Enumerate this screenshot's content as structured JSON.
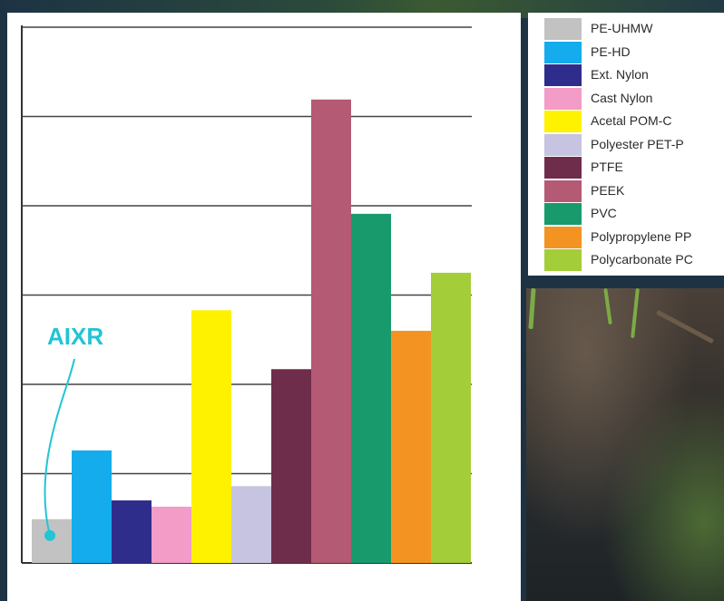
{
  "chart_data": {
    "type": "bar",
    "categories": [
      "PE-UHMW",
      "PE-HD",
      "Ext. Nylon",
      "Cast Nylon",
      "Acetal POM-C",
      "Polyester PET-P",
      "PTFE",
      "PEEK",
      "PVC",
      "Polypropylene PP",
      "Polycarbonate PC"
    ],
    "values": [
      0.49,
      1.26,
      0.7,
      0.63,
      2.83,
      0.86,
      2.17,
      5.19,
      3.91,
      2.6,
      3.25
    ],
    "colors": [
      "#c2c2c2",
      "#14aced",
      "#2e2d8c",
      "#f29cc7",
      "#fff200",
      "#c6c4e0",
      "#6e2d4a",
      "#b45a74",
      "#199a6d",
      "#f39321",
      "#a3cd39"
    ],
    "ylim": [
      0,
      6
    ],
    "grid": true,
    "legend": "right",
    "annotation": {
      "text": "AIXR",
      "target": "PE-UHMW",
      "color": "#22c4d6"
    }
  }
}
